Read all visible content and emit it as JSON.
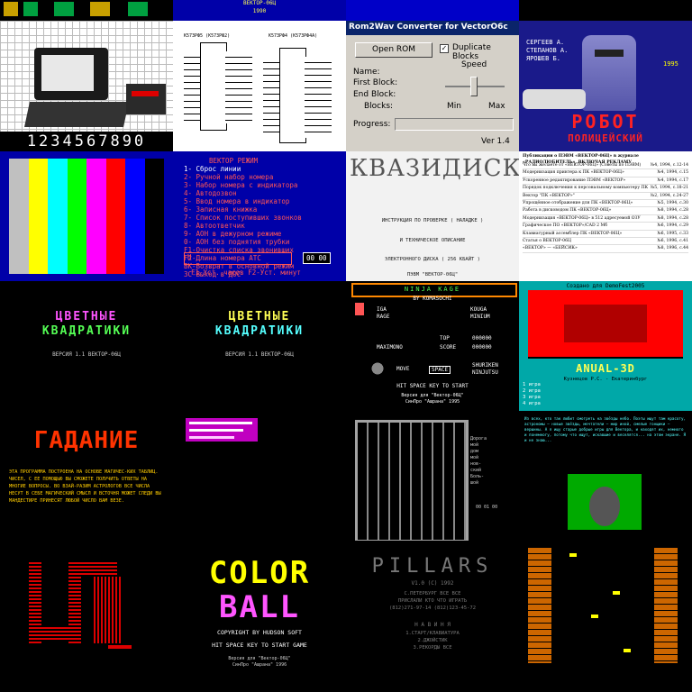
{
  "tiles": {
    "r0_c1_label_line1": "ВЕКТОР-06Ц",
    "r0_c1_label_line2": "1990",
    "computer_digits": "1234567890",
    "circuit_title_left": "К573РФ5 (К573РФ2)",
    "circuit_title_right": "К573РФ4 (К573РФ4А)",
    "rom2wav": {
      "title": "Rom2Wav Converter for VectorO6c",
      "open_rom": "Open ROM",
      "duplicate_blocks": "Duplicate Blocks",
      "speed": "Speed",
      "name": "Name:",
      "first_block": "First Block:",
      "end_block": "End Block:",
      "blocks": "Blocks:",
      "min": "Min",
      "max": "Max",
      "progress": "Progress:",
      "version": "Ver 1.4"
    },
    "robot": {
      "credits_line1": "СЕРГЕЕВ А.",
      "credits_line2": "СТЕПАНОВ А.",
      "credits_line3": "ЯРОШЕВ Б.",
      "year": "1995",
      "title_line1": "РОБОТ",
      "title_line2": "ПОЛИЦЕЙСКИЙ"
    },
    "colorbars": [
      "#c0c0c0",
      "#ffff00",
      "#00ffff",
      "#00ff00",
      "#ff00ff",
      "#ff0000",
      "#0000ff",
      "#000000"
    ],
    "phone_menu": {
      "title": "ВЕКТОР РЕЖИМ",
      "items": [
        "1- Сброс линии",
        "2- Ручной набор номера",
        "3- Набор номера с индикатора",
        "4- Автодозвон",
        "5- Ввод номера в индикатор",
        "6- Записная книжка",
        "7- Список поступивших звонков",
        "8- Автоответчик",
        "9- АОН в дежурном режиме",
        "0- АОН без поднятия трубки",
        "F1-Очистка списка звонивших",
        "F2-Длина номера АТС",
        "ВК-Возврат в основной режим",
        "ЗС-Выход в ДОС"
      ],
      "bar_label": "H",
      "time": "00 00",
      "footer": "F1-Уст. часов  F2-Уст. минут"
    },
    "kvazidisk": {
      "title": "КВАЗИДИСК",
      "line1": "ИНСТРУКЦИЯ ПО ПРОВЕРКЕ ( НАЛАДКЕ )",
      "line2": "И ТЕХНИЧЕСКОЕ ОПИСАНИЕ",
      "line3": "ЭЛЕКТРОННОГО ДИСКА ( 256 КБАЙТ )",
      "line4": "ПЭВМ \"ВЕКТОР-06Ц\""
    },
    "toc": {
      "header": "Публикации о ПЭВМ «ВЕКТОР-06Ц» в журнале «РАДИОЛЮБИТЕЛЬ», ВКЛЮЧАЯ РЕКЛАМУ",
      "rows": [
        [
          "Что вы желаете от «ВЕКТОР-06Ц» (Советы по ПЭВМ)",
          "№4, 1994, с.12-14"
        ],
        [
          "Модернизация принтера к ПК «ВЕКТОР-06Ц»",
          "№4, 1994, с.15"
        ],
        [
          "Ускоренное редактирование ПЭВМ «ВЕКТОР»",
          "№4, 1994, с.17"
        ],
        [
          "Порядок подключения к персональному компьютеру ПК «Вектор-06ц» к ЭВМ",
          "№5, 1994, с.18-21"
        ],
        [
          "Вектор \"ПК «ВЕКТОР»\"",
          "№2, 1994, с.24-27"
        ],
        [
          "Упрощённое отображение для ПК «ВЕКТОР-06Ц»",
          "№5, 1994, с.30"
        ],
        [
          "Работа в дисководом ПК «ВЕКТОР-06Ц»",
          "№8, 1994, с.28"
        ],
        [
          "Модернизация «ВЕКТОР-06Ц» в 512 адресуемой ОЗУ",
          "№8, 1994, с.28"
        ],
        [
          "Графическое ПО «ВЕКТОР»/CAD 2 Мб",
          "№6, 1994, с.29"
        ],
        [
          "Клавиатурный ассемблер ПК «ВЕКТОР-06Ц»",
          "№6, 1995, с.33"
        ],
        [
          "Статья о ВЕКТОР-06Ц",
          "№6, 1996, с.41"
        ],
        [
          "«ВЕКТОР» — «БЕЙСИК»",
          "№8, 1996, с.44"
        ]
      ]
    },
    "squares_title_line1": "ЦВЕТНЫЕ",
    "squares_title_line2": "КВАДРАТИКИ",
    "squares_info": "ВЕРСИЯ 1.1 ВЕКТОР-06Ц",
    "ninja": {
      "title": "NINJA KAGE",
      "by": "BY KOMASOCHI",
      "iga": "IGA",
      "kouga": "KOUGA",
      "rage": "RAGE",
      "minium": "MINIUM",
      "top": "TOP",
      "top_value": "000000",
      "maximono": "MAXIMONO",
      "score": "SCORE",
      "score_value": "000000",
      "move": "MOVE",
      "space": "SPACE",
      "shuriken": "SHURIKEN",
      "ninjutsu": "NINJUTSU",
      "hit_space": "HIT SPACE KEY TO START",
      "credit1": "Версия для \"Вектор-06Ц\"",
      "credit2": "СинПро \"Ашрана\" 1995"
    },
    "anual": {
      "top": "Создано для DemoFest2005",
      "logo": "ANUAL-3D",
      "author": "Кузнецов Р.С. - Екатеринбург",
      "menu": [
        "1 игра",
        "2 игра",
        "3 игра",
        "4 игра"
      ]
    },
    "gadanie": {
      "title": "ГАДАНИЕ",
      "text": "ЭТА ПРОГРАММА ПОСТРОЕНА НА ОСНОВЕ МАГИЧЕС-КИХ ТАБЛИЦ. ЧИСЕЛ, С ЕЕ ПОМОЩЬЮ ВЫ СМОЖЕТЕ ПОЛУЧИТЬ ОТВЕТЫ НА МНОГИЕ ВОПРОСЫ. ВО ВЗАЙ-РАЗИМ АСТРОЛОГОВ ВСЕ ЧИСЛА НЕСУТ В СЕБЕ МАГИЧЕСКИЙ СМЫСЛ И ВСТОЧНЯ МОЖЕТ СЛЕДИ ВЫ МАНДЕСТИРЕ ПРИНЕСЯТ ЛЮБОЙ ЧИСЛО ВАМ ВЕЗЕ."
    },
    "maze_side": [
      "Дорога",
      "мой",
      "дом",
      "мой",
      "нов-",
      "ский",
      "Боль-",
      "шой"
    ],
    "maze_score": "00 01 00",
    "pixel_text_intro": "Из всех, кто так любит смотреть на звёзды небо. Поэты ищут там красоту, астрономы — новые звёзды, мечтатели — мир иной, смелые гонщики — вершины. А я ищу старые добрые игры для Вектора, и находят их, немного и понемногу, потому что ищут, искавшие и веселятся... на этом экране. Я и не знаю...",
    "color_ball": {
      "line1": "COLOR",
      "line2": "BALL",
      "copyright": "COPYRIGHT BY HUDSON SOFT",
      "hit": "HIT SPACE KEY TO START GAME",
      "credit1": "Версия для \"Вектор-06Ц\"",
      "credit2": "СинПро \"Ашрана\" 1996"
    },
    "pillars": {
      "title": "PILLARS",
      "version": "V1.0 (C) 1992",
      "line1": "С.ПЕТЕРБУРГ ВСЕ ВСЕ",
      "line2": "ПРИСЛАЛИ КТО ЧТО ИГРАТЬ",
      "line3": "(812)271-97-14 (812)123-45-72",
      "section": "Н А В И Н Я",
      "opt1": "1.СТАРТ/КЛАВИАТУРА",
      "opt2": "2.ДЖОЙСТИК",
      "opt3": "3.РЕКОРДЫ ВСЕ"
    }
  }
}
